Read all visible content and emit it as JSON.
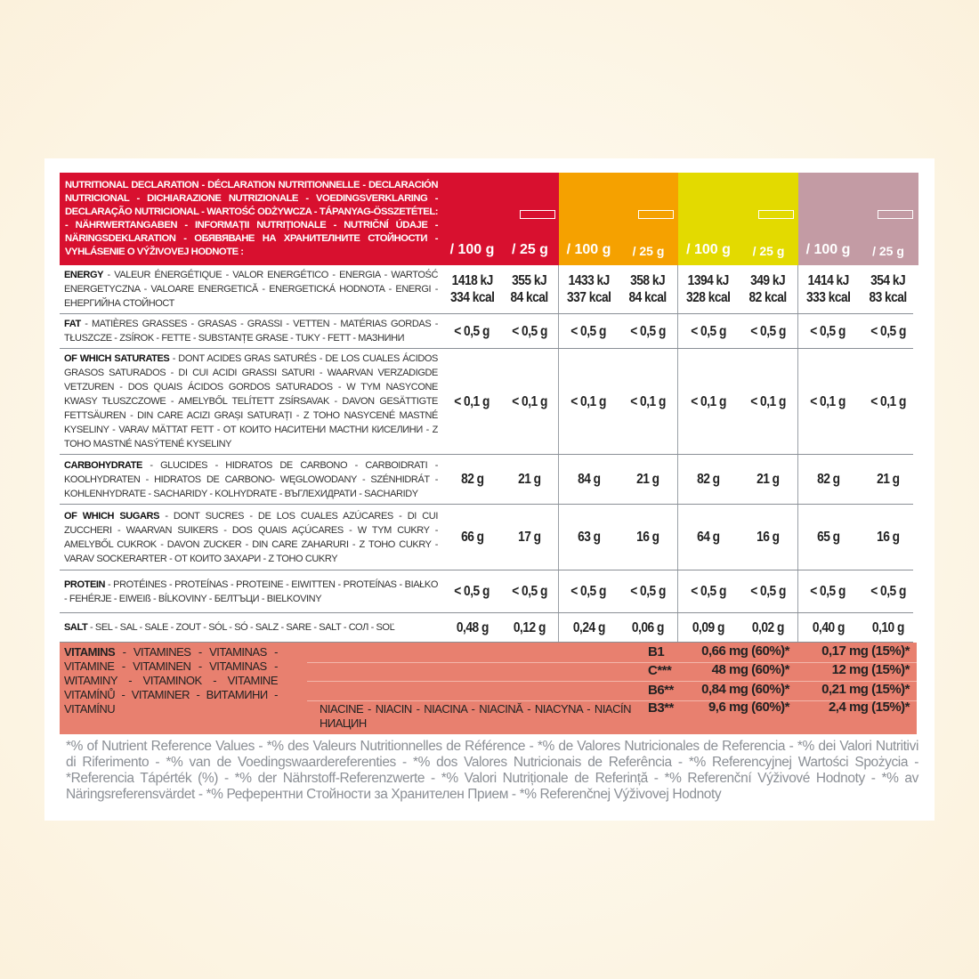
{
  "header": {
    "title": "NUTRITIONAL DECLARATION - DÉCLARATION NUTRITIONNELLE - DECLARACIÓN NUTRICIONAL - DICHIARAZIONE NUTRIZIONALE - VOEDINGSVERKLARING - DECLARAÇÃO NUTRICIONAL - WARTOŚĆ ODŻYWCZA - TÁPANYAG-ÖSSZETÉTEL: - NÄHRWERTANGABEN - INFORMAȚII NUTRIȚIONALE - NUTRIČNÍ ÚDAJE - NÄRINGSDEKLARATION - ОБЯВЯВАНЕ НА ХРАНИТЕЛНИТЕ СТОЙНОСТИ - VYHLÁSENIE O VÝŽIVOVEJ HODNOTE :",
    "columns": [
      {
        "color": "#d8102f",
        "per100": "/ 100 g",
        "perBar": "/ 25 g"
      },
      {
        "color": "#f5a100",
        "per100": "/ 100 g",
        "perBar": "/ 25 g"
      },
      {
        "color": "#e3da00",
        "per100": "/ 100 g",
        "perBar": "/ 25 g"
      },
      {
        "color": "#c39ba4",
        "per100": "/ 100 g",
        "perBar": "/ 25 g"
      }
    ],
    "bar_icon": "bar-icon"
  },
  "rows": [
    {
      "bold": "ENERGY",
      "text": " - VALEUR ÉNERGÉTIQUE - VALOR ENERGÉTICO - ENERGIA - WARTOŚĆ ENERGETYCZNA - VALOARE ENERGETICĂ - ENERGETICKÁ HODNOTA - ENERGI - ЕНЕРГИЙНА СТОЙНОСТ",
      "values": [
        "1418 kJ\n334 kcal",
        "355 kJ\n84 kcal",
        "1433 kJ\n337 kcal",
        "358 kJ\n84 kcal",
        "1394 kJ\n328 kcal",
        "349 kJ\n82 kcal",
        "1414 kJ\n333 kcal",
        "354 kJ\n83 kcal"
      ]
    },
    {
      "bold": "FAT",
      "text": " - MATIÈRES GRASSES - GRASAS - GRASSI - VETTEN - MATÉRIAS GORDAS - TŁUSZCZE - ZSÍROK - FETTE - SUBSTANȚE GRASE - TUKY - FETT - МАЗНИНИ",
      "values": [
        "< 0,5 g",
        "< 0,5 g",
        "< 0,5 g",
        "< 0,5 g",
        "< 0,5 g",
        "< 0,5 g",
        "< 0,5 g",
        "< 0,5 g"
      ]
    },
    {
      "bold": "OF WHICH SATURATES",
      "text": " - DONT ACIDES GRAS SATURÉS - DE LOS CUALES ÁCIDOS GRASOS SATURADOS - DI CUI ACIDI GRASSI SATURI - WAARVAN VERZADIGDE VETZUREN - DOS QUAIS ÁCIDOS GORDOS SATURADOS - W TYM NASYCONE KWASY TŁUSZCZOWE - AMELYBŐL TELÍTETT ZSÍRSAVAK - DAVON GESÄTTIGTE FETTSÄUREN - DIN CARE ACIZI GRAȘI SATURAȚI - Z TOHO NASYCENÉ MASTNÉ KYSELINY - VARAV MÄTTAT FETT - ОТ КОИТО НАСИТЕНИ МАСТНИ КИСЕЛИНИ - Z TOHO MASTNÉ NASÝTENÉ KYSELINY",
      "values": [
        "< 0,1 g",
        "< 0,1 g",
        "< 0,1 g",
        "< 0,1 g",
        "< 0,1 g",
        "< 0,1 g",
        "< 0,1 g",
        "< 0,1 g"
      ]
    },
    {
      "bold": "CARBOHYDRATE",
      "text": " - GLUCIDES - HIDRATOS DE CARBONO - CARBOIDRATI - KOOLHYDRATEN - HIDRATOS DE CARBONO- WĘGLOWODANY - SZÉNHIDRÁT - KOHLENHYDRATE - SACHARIDY - KOLHYDRATE - ВЪГЛЕХИДРАТИ - SACHARIDY",
      "values": [
        "82 g",
        "21 g",
        "84 g",
        "21 g",
        "82 g",
        "21 g",
        "82 g",
        "21 g"
      ]
    },
    {
      "bold": "OF WHICH SUGARS",
      "text": " - DONT SUCRES - DE LOS CUALES AZÚCARES - DI CUI ZUCCHERI - WAARVAN SUIKERS - DOS QUAIS AÇÚCARES - W TYM CUKRY - AMELYBŐL CUKROK - DAVON ZUCKER - DIN CARE ZAHARURI - Z TOHO CUKRY - VARAV SOCKERARTER - ОТ КОИТО ЗАХАРИ - Z TOHO CUKRY",
      "values": [
        "66 g",
        "17 g",
        "63 g",
        "16 g",
        "64 g",
        "16 g",
        "65 g",
        "16 g"
      ]
    },
    {
      "bold": "PROTEIN",
      "text": " - PROTÉINES - PROTEÍNAS - PROTEINE - EIWITTEN - PROTEÍNAS - BIAŁKO - FEHÉRJE - EIWEIß - BÍLKOVINY - БЕЛТЪЦИ - BIELKOVINY",
      "values": [
        "< 0,5 g",
        "< 0,5 g",
        "< 0,5 g",
        "< 0,5 g",
        "< 0,5 g",
        "< 0,5 g",
        "< 0,5 g",
        "< 0,5 g"
      ]
    },
    {
      "bold": "SALT",
      "text": " - SEL - SAL - SALE - ZOUT - SÓL - SÓ - SALZ  - SARE - SALT - СОЛ - SOĽ",
      "values": [
        "0,48 g",
        "0,12 g",
        "0,24 g",
        "0,06 g",
        "0,09 g",
        "0,02 g",
        "0,40 g",
        "0,10 g"
      ]
    }
  ],
  "vitamins": {
    "bold": "VITAMINS",
    "text": " - VITAMINES - VITAMINAS - VITAMINE - VITAMINEN - VITAMINAS - WITAMINY - VITAMINOK - VITAMINE VITAMÍNŮ - VITAMINER - ВИТАМИНИ - VITAMÍNU",
    "niacin": "NIACINE - NIACIN - NIACINA - NIACINĂ - NIACYNA - NIACÍN НИАЦИН",
    "items": [
      {
        "name": "B1",
        "per100": "0,66 mg (60%)*",
        "perBar": "0,17 mg (15%)*"
      },
      {
        "name": "C***",
        "per100": "48 mg (60%)*",
        "perBar": "12 mg (15%)*"
      },
      {
        "name": "B6**",
        "per100": "0,84 mg (60%)*",
        "perBar": "0,21 mg (15%)*"
      },
      {
        "name": "B3**",
        "per100": "9,6 mg (60%)*",
        "perBar": "2,4 mg (15%)*"
      }
    ]
  },
  "footnote": "*% of Nutrient Reference Values - *% des Valeurs Nutritionnelles de Référence - *% de Valores Nutricionales de Referencia - *% dei Valori Nutritivi di Riferimento - *% van de Voedingswaardereferenties - *% dos Valores Nutricionais de Referência - *% Referencyjnej Wartości Spożycia - *Referencia Tápérték (%) - *% der Nährstoff-Referenzwerte - *% Valori Nutriționale de Referință - *% Referenční Výživové Hodnoty - *% av Näringsreferensvärdet - *% Референтни Стойности за Хранителен Прием - *% Referenčnej Výživovej Hodnoty"
}
